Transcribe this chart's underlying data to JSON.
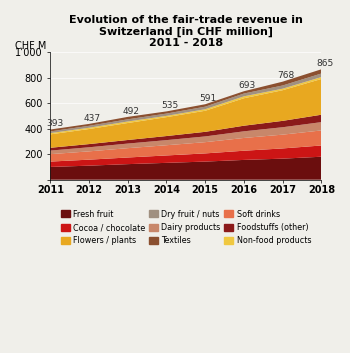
{
  "title": "Evolution of the fair-trade revenue in\nSwitzerland [in CHF million]\n2011 - 2018",
  "ylabel": "CHF M",
  "years": [
    2011,
    2012,
    2013,
    2014,
    2015,
    2016,
    2017,
    2018
  ],
  "totals": [
    393,
    437,
    492,
    535,
    591,
    693,
    768,
    865
  ],
  "categories": [
    "Fresh fruit",
    "Cocoa / chocolate",
    "Soft drinks",
    "Dairy products",
    "Foodstuffs (other)",
    "Flowers / plants",
    "Non-food products",
    "Dry fruit / nuts",
    "Textiles"
  ],
  "colors": [
    "#6b0e0e",
    "#cc1515",
    "#e8704a",
    "#c8876a",
    "#8b1a1a",
    "#e8a820",
    "#f0c840",
    "#a09080",
    "#8b5030"
  ],
  "data": {
    "Fresh fruit": [
      100,
      110,
      122,
      132,
      142,
      155,
      165,
      180
    ],
    "Cocoa / chocolate": [
      42,
      47,
      52,
      58,
      64,
      72,
      80,
      88
    ],
    "Soft drinks": [
      58,
      65,
      73,
      80,
      88,
      100,
      108,
      118
    ],
    "Dairy products": [
      28,
      32,
      36,
      40,
      45,
      52,
      58,
      65
    ],
    "Foodstuffs (other)": [
      22,
      25,
      28,
      32,
      36,
      44,
      50,
      58
    ],
    "Flowers / plants": [
      105,
      118,
      133,
      148,
      165,
      215,
      240,
      280
    ],
    "Non-food products": [
      10,
      10,
      12,
      10,
      12,
      15,
      12,
      15
    ],
    "Dry fruit / nuts": [
      13,
      15,
      17,
      18,
      20,
      22,
      25,
      28
    ],
    "Textiles": [
      15,
      15,
      19,
      17,
      19,
      18,
      30,
      33
    ]
  },
  "ylim": [
    0,
    1000
  ],
  "yticks": [
    0,
    200,
    400,
    600,
    800,
    1000
  ],
  "ytick_labels": [
    "",
    "200",
    "400",
    "600",
    "800",
    "1’000"
  ],
  "bg_color": "#f0efea",
  "legend_order": [
    "Fresh fruit",
    "Cocoa / chocolate",
    "Flowers / plants",
    "Dry fruit / nuts",
    "Dairy products",
    "Textiles",
    "Soft drinks",
    "Foodstuffs (other)",
    "Non-food products"
  ],
  "legend_colors": {
    "Fresh fruit": "#6b0e0e",
    "Cocoa / chocolate": "#cc1515",
    "Flowers / plants": "#e8a820",
    "Dry fruit / nuts": "#a09080",
    "Dairy products": "#c8876a",
    "Textiles": "#8b5030",
    "Soft drinks": "#e8704a",
    "Foodstuffs (other)": "#8b1a1a",
    "Non-food products": "#f0c840"
  }
}
